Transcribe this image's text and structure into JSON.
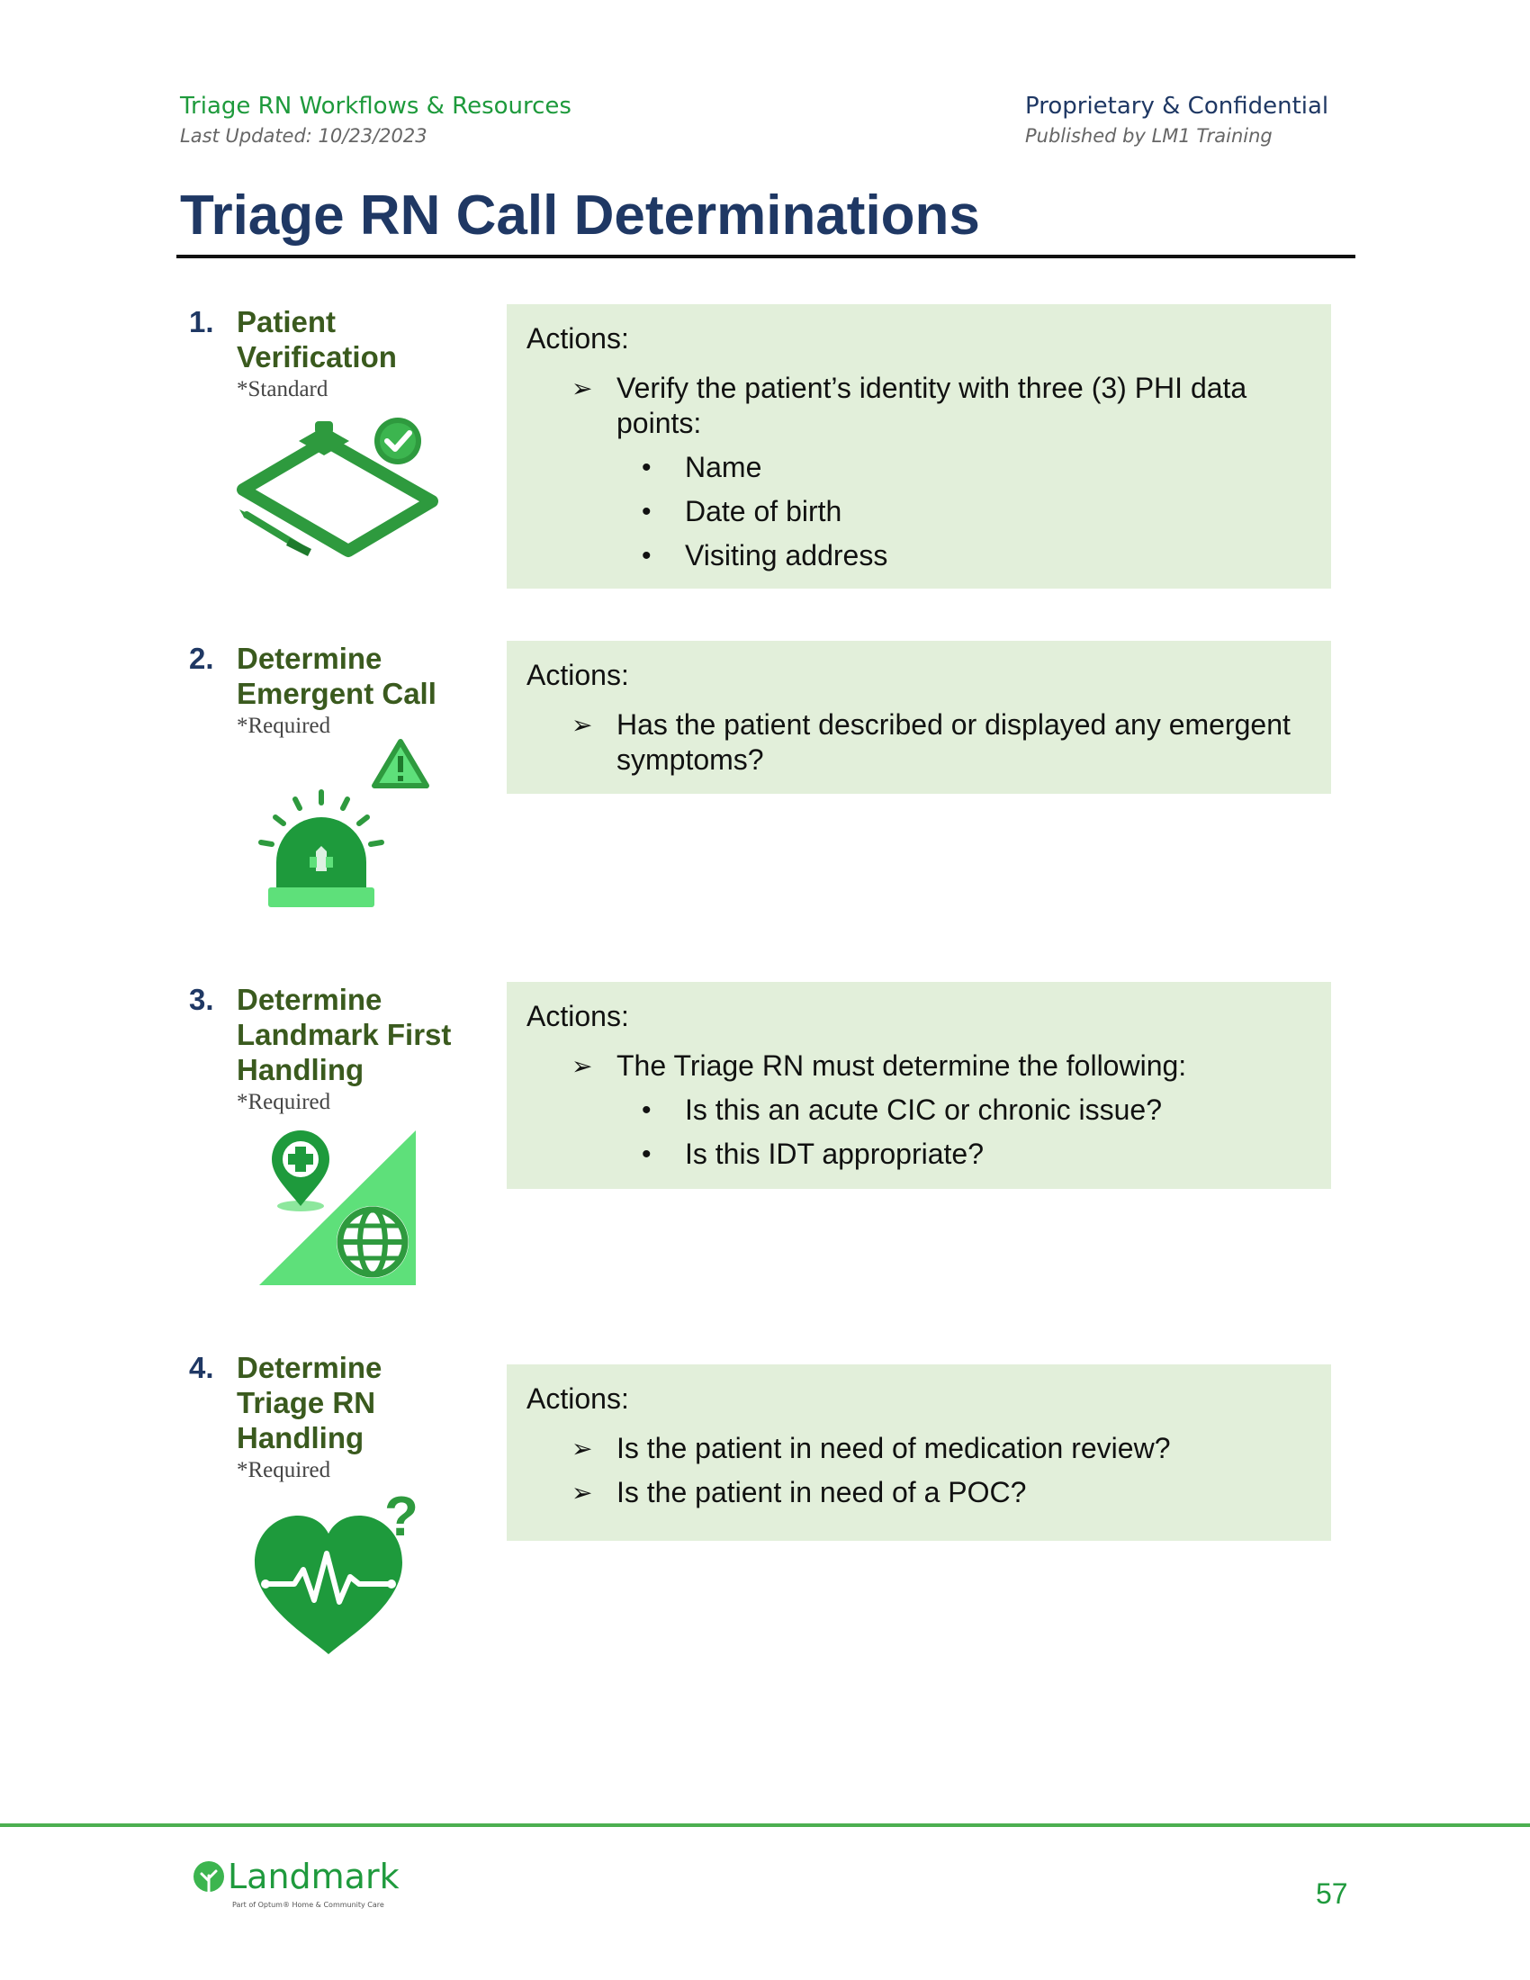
{
  "header": {
    "doc_title": "Triage RN Workflows & Resources",
    "last_updated": "Last Updated: 10/23/2023",
    "confidentiality": "Proprietary & Confidential",
    "publisher": "Published by LM1 Training"
  },
  "page_title": "Triage RN Call Determinations",
  "steps": [
    {
      "number": "1.",
      "title": "Patient Verification",
      "qualifier": "*Standard",
      "icon": "clipboard-check-icon",
      "actions_label": "Actions:",
      "items": [
        {
          "text": "Verify the patient’s identity with three (3) PHI data points:",
          "sub": [
            "Name",
            "Date of birth",
            "Visiting address"
          ]
        }
      ]
    },
    {
      "number": "2.",
      "title": "Determine Emergent Call",
      "qualifier": "*Required",
      "icon": "emergency-siren-icon",
      "actions_label": "Actions:",
      "items": [
        {
          "text": "Has the patient described or displayed any emergent symptoms?"
        }
      ]
    },
    {
      "number": "3.",
      "title": "Determine Landmark First Handling",
      "qualifier": "*Required",
      "icon": "location-globe-icon",
      "actions_label": "Actions:",
      "items": [
        {
          "text": "The Triage RN must determine the following:",
          "sub": [
            "Is this an acute CIC or chronic issue?",
            "Is this IDT appropriate?"
          ]
        }
      ]
    },
    {
      "number": "4.",
      "title": "Determine Triage RN Handling",
      "qualifier": "*Required",
      "icon": "heart-question-icon",
      "actions_label": "Actions:",
      "items": [
        {
          "text": "Is the patient in need of medication review?"
        },
        {
          "text": "Is the patient in need of a POC?"
        }
      ]
    }
  ],
  "footer": {
    "logo_text": "Landmark",
    "logo_tagline": "Part of Optum® Home & Community Care",
    "page_number": "57"
  },
  "colors": {
    "brand_green": "#1f9a3d",
    "title_navy": "#1f3864",
    "box_fill": "#e2efda",
    "icon_green": "#2e9a3e",
    "icon_light_green": "#5ee07a"
  }
}
